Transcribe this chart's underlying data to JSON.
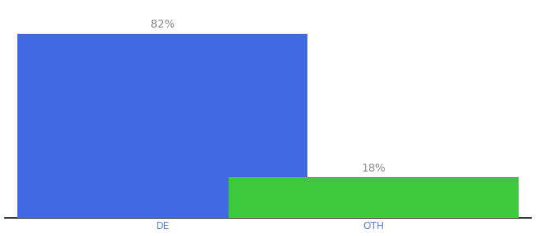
{
  "categories": [
    "DE",
    "OTH"
  ],
  "values": [
    82,
    18
  ],
  "bar_colors": [
    "#4169e1",
    "#3dc83d"
  ],
  "labels": [
    "82%",
    "18%"
  ],
  "background_color": "#ffffff",
  "bar_width": 0.55,
  "x_positions": [
    0.3,
    0.7
  ],
  "xlim": [
    0.0,
    1.0
  ],
  "ylim": [
    0,
    95
  ],
  "label_fontsize": 10,
  "tick_fontsize": 9,
  "tick_color": "#5b7fd4",
  "spine_color": "#111111",
  "label_color": "#888888"
}
